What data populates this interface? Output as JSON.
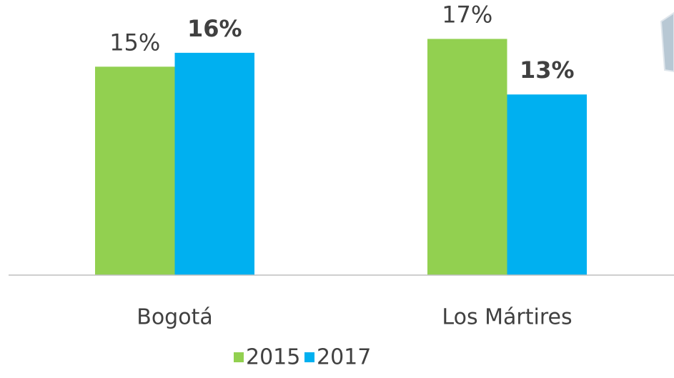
{
  "chart_data": {
    "type": "bar",
    "categories": [
      "Bogotá",
      "Los Mártires"
    ],
    "series": [
      {
        "name": "2015",
        "color": "#92d050",
        "values": [
          15,
          17
        ],
        "value_labels": [
          "15%",
          "17%"
        ]
      },
      {
        "name": "2017",
        "color": "#00b0f0",
        "values": [
          16,
          13
        ],
        "value_labels": [
          "16%",
          "13%"
        ]
      }
    ],
    "ylim": [
      0,
      19.8
    ]
  }
}
